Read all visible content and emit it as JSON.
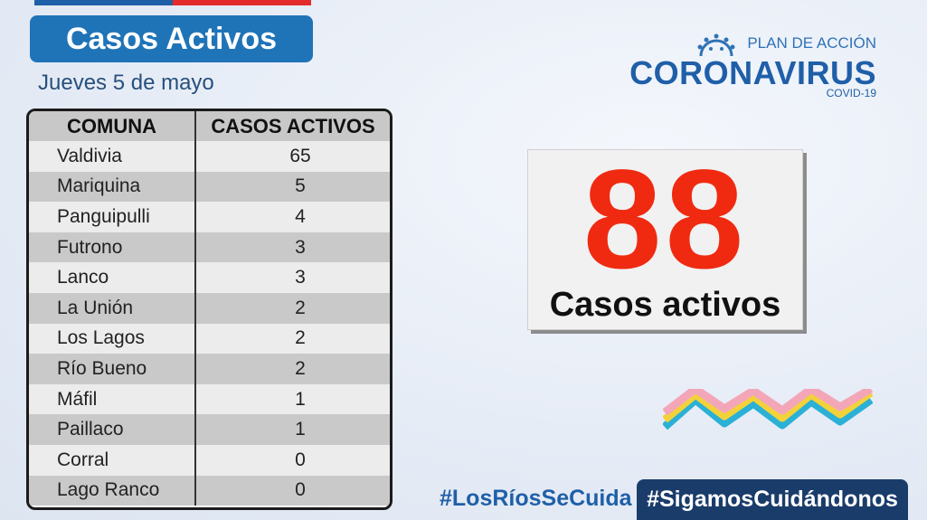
{
  "header": {
    "title": "Casos Activos",
    "date": "Jueves 5 de mayo"
  },
  "logo": {
    "plan": "PLAN DE ACCIÓN",
    "name": "CORONAVIRUS",
    "sub": "COVID-19",
    "icon": "virus-icon"
  },
  "table": {
    "headers": [
      "COMUNA",
      "CASOS ACTIVOS"
    ],
    "rows": [
      {
        "comuna": "Valdivia",
        "casos": "65"
      },
      {
        "comuna": "Mariquina",
        "casos": "5"
      },
      {
        "comuna": "Panguipulli",
        "casos": "4"
      },
      {
        "comuna": "Futrono",
        "casos": "3"
      },
      {
        "comuna": "Lanco",
        "casos": "3"
      },
      {
        "comuna": "La Unión",
        "casos": "2"
      },
      {
        "comuna": "Los Lagos",
        "casos": "2"
      },
      {
        "comuna": "Río Bueno",
        "casos": "2"
      },
      {
        "comuna": "Máfil",
        "casos": "1"
      },
      {
        "comuna": "Paillaco",
        "casos": "1"
      },
      {
        "comuna": "Corral",
        "casos": "0"
      },
      {
        "comuna": "Lago Ranco",
        "casos": "0"
      }
    ]
  },
  "summary": {
    "total": "88",
    "label": "Casos activos"
  },
  "hashtags": {
    "left": "#LosRíosSeCuida",
    "right": "#SigamosCuidándonos"
  },
  "colors": {
    "brand_blue": "#1f74b8",
    "accent_red": "#f02a10",
    "dark_navy": "#1a3c6a"
  }
}
